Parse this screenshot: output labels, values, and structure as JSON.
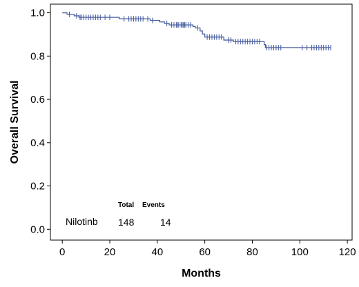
{
  "chart_data": {
    "type": "line",
    "subtype": "kaplan-meier",
    "title": "",
    "xlabel": "Months",
    "ylabel": "Overall Survival",
    "xlim": [
      -5,
      122
    ],
    "ylim": [
      -0.05,
      1.04
    ],
    "x_ticks": [
      0,
      20,
      40,
      60,
      80,
      100,
      120
    ],
    "y_ticks": [
      0.0,
      0.2,
      0.4,
      0.6,
      0.8,
      1.0
    ],
    "y_tick_labels": [
      "0.0",
      "0.2",
      "0.4",
      "0.6",
      "0.8",
      "1.0"
    ],
    "grid": false,
    "line_color": "#4a5fa0",
    "series": [
      {
        "name": "Nilotinb",
        "steps": [
          [
            0,
            1.0
          ],
          [
            2,
            0.993
          ],
          [
            5,
            0.986
          ],
          [
            7,
            0.979
          ],
          [
            24,
            0.972
          ],
          [
            37,
            0.965
          ],
          [
            41,
            0.958
          ],
          [
            43,
            0.951
          ],
          [
            45,
            0.944
          ],
          [
            55,
            0.937
          ],
          [
            56,
            0.93
          ],
          [
            58,
            0.916
          ],
          [
            59,
            0.902
          ],
          [
            60,
            0.888
          ],
          [
            68,
            0.874
          ],
          [
            72,
            0.867
          ],
          [
            85,
            0.853
          ],
          [
            85.5,
            0.839
          ],
          [
            113,
            0.839
          ]
        ],
        "censored": [
          3,
          6,
          7.5,
          8,
          9,
          10,
          11,
          12,
          13,
          14,
          15,
          16,
          18,
          20,
          26,
          28,
          29,
          30,
          31,
          32,
          33,
          34,
          36,
          38,
          44,
          46,
          47,
          48,
          48.5,
          49,
          50,
          50.5,
          51,
          51.5,
          52,
          53,
          54,
          57,
          61,
          62,
          63,
          64,
          65,
          66,
          67,
          70,
          71,
          73,
          74,
          75,
          76,
          77,
          78,
          79,
          80,
          81,
          82,
          83,
          86,
          87,
          88,
          89,
          90,
          91,
          92,
          101,
          103,
          105,
          106,
          107,
          108,
          109,
          110,
          111,
          112,
          113
        ]
      }
    ],
    "annotation": {
      "group_label": "Nilotinb",
      "total_header": "Total",
      "events_header": "Events",
      "total": "148",
      "events": "14"
    }
  }
}
